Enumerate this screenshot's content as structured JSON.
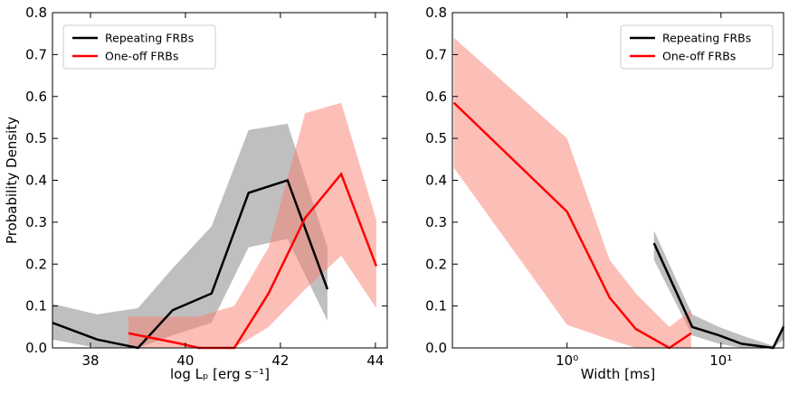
{
  "chart_data": [
    {
      "type": "line",
      "xlabel": "log Lₚ [erg s⁻¹]",
      "ylabel": "Probability Density",
      "xlim": [
        37.2,
        44.25
      ],
      "ylim": [
        0,
        0.8
      ],
      "xscale": "linear",
      "xticks": [
        38,
        40,
        42,
        44
      ],
      "yticks": [
        {
          "value": 0,
          "label": "0.0"
        },
        0.1,
        0.2,
        0.3,
        0.4,
        0.5,
        0.6,
        0.7,
        0.8
      ],
      "legend": "upper left",
      "series": [
        {
          "name": "Repeating FRBs",
          "color": "#000000",
          "band_color": "#7f7f7f",
          "x": [
            37.2,
            38.14,
            39.0,
            39.73,
            40.55,
            41.33,
            42.15,
            42.99
          ],
          "values": [
            0.06,
            0.02,
            0.0,
            0.09,
            0.13,
            0.37,
            0.4,
            0.14
          ],
          "lower": [
            0.02,
            0.0,
            0.0,
            0.03,
            0.06,
            0.24,
            0.26,
            0.065
          ],
          "upper": [
            0.105,
            0.08,
            0.095,
            0.19,
            0.29,
            0.52,
            0.535,
            0.24
          ]
        },
        {
          "name": "One-off FRBs",
          "color": "#ff0000",
          "band_color": "#fa8072",
          "x": [
            38.8,
            39.9,
            40.28,
            41.03,
            41.75,
            42.52,
            43.28,
            44.02
          ],
          "values": [
            0.035,
            0.01,
            0.0,
            0.0,
            0.13,
            0.31,
            0.415,
            0.195
          ],
          "lower": [
            0.0,
            0.0,
            0.0,
            0.0,
            0.05,
            0.14,
            0.22,
            0.095
          ],
          "upper": [
            0.075,
            0.075,
            0.075,
            0.1,
            0.24,
            0.56,
            0.585,
            0.305
          ]
        }
      ]
    },
    {
      "type": "line",
      "xlabel": "Width [ms]",
      "xlim": [
        0.18,
        25.5
      ],
      "ylim": [
        0,
        0.8
      ],
      "xscale": "log",
      "xticks": [
        {
          "value": 1,
          "label": "10⁰"
        },
        {
          "value": 10,
          "label": "10¹"
        }
      ],
      "yticks": [
        {
          "value": 0,
          "label": "0.0"
        },
        0.1,
        0.2,
        0.3,
        0.4,
        0.5,
        0.6,
        0.7,
        0.8
      ],
      "legend": "upper right",
      "series": [
        {
          "name": "Repeating FRBs",
          "color": "#000000",
          "band_color": "#7f7f7f",
          "x": [
            3.67,
            6.5,
            9.7,
            13.6,
            21.8,
            25.5
          ],
          "values": [
            0.25,
            0.05,
            0.03,
            0.01,
            0.0,
            0.05
          ],
          "lower": [
            0.21,
            0.03,
            0.01,
            0.0,
            0.0,
            0.02
          ],
          "upper": [
            0.28,
            0.08,
            0.05,
            0.03,
            0.005,
            0.06
          ]
        },
        {
          "name": "One-off FRBs",
          "color": "#ff0000",
          "band_color": "#fa8072",
          "x": [
            0.184,
            1.0,
            1.89,
            2.8,
            4.62,
            6.4
          ],
          "values": [
            0.585,
            0.325,
            0.12,
            0.045,
            0.0,
            0.035
          ],
          "lower": [
            0.43,
            0.055,
            0.02,
            0.0,
            0.0,
            0.0
          ],
          "upper": [
            0.74,
            0.5,
            0.21,
            0.13,
            0.05,
            0.09
          ]
        }
      ]
    }
  ]
}
